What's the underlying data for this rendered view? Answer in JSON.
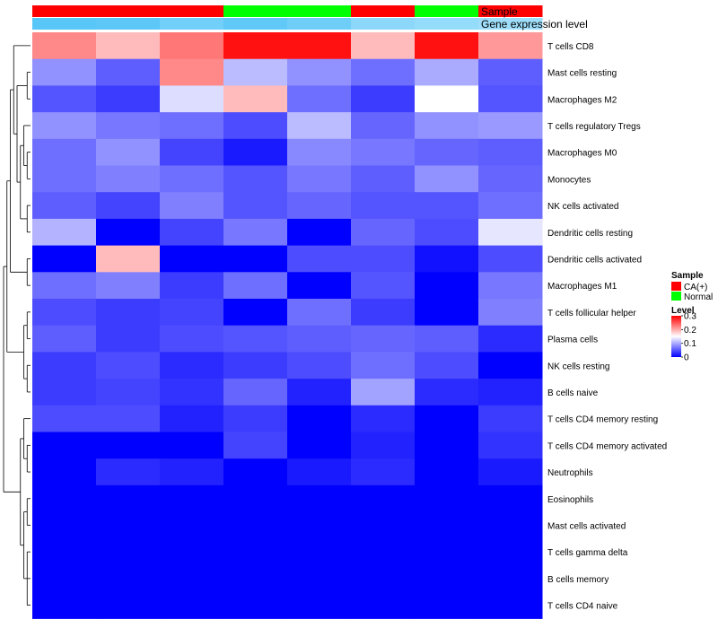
{
  "chart_data": {
    "type": "heatmap",
    "annotation_rows": [
      "Sample",
      "Gene expression level"
    ],
    "samples": [
      {
        "group": "CA(+)",
        "expression": 0.95
      },
      {
        "group": "CA(+)",
        "expression": 0.92
      },
      {
        "group": "CA(+)",
        "expression": 0.8
      },
      {
        "group": "Normal",
        "expression": 0.9
      },
      {
        "group": "Normal",
        "expression": 0.82
      },
      {
        "group": "CA(+)",
        "expression": 0.65
      },
      {
        "group": "Normal",
        "expression": 0.6
      },
      {
        "group": "CA(+)",
        "expression": 0.55
      }
    ],
    "rows": [
      "T cells CD8",
      "Mast cells resting",
      "Macrophages M2",
      "T cells regulatory  Tregs",
      "Macrophages M0",
      "Monocytes",
      "NK cells activated",
      "Dendritic cells resting",
      "Dendritic cells activated",
      "Macrophages M1",
      "T cells follicular helper",
      "Plasma cells",
      "NK cells resting",
      "B cells naive",
      "T cells CD4 memory resting",
      "T cells CD4 memory activated",
      "Neutrophils",
      "Eosinophils",
      "Mast cells activated",
      "T cells gamma delta",
      "B cells memory",
      "T cells CD4 naive"
    ],
    "values": [
      [
        0.22,
        0.19,
        0.23,
        0.29,
        0.29,
        0.19,
        0.29,
        0.21
      ],
      [
        0.085,
        0.055,
        0.22,
        0.11,
        0.085,
        0.065,
        0.1,
        0.055
      ],
      [
        0.05,
        0.035,
        0.13,
        0.19,
        0.065,
        0.035,
        0.15,
        0.05
      ],
      [
        0.085,
        0.07,
        0.065,
        0.045,
        0.11,
        0.06,
        0.085,
        0.09
      ],
      [
        0.065,
        0.085,
        0.04,
        0.015,
        0.08,
        0.07,
        0.06,
        0.055
      ],
      [
        0.065,
        0.075,
        0.065,
        0.05,
        0.07,
        0.055,
        0.085,
        0.06
      ],
      [
        0.055,
        0.04,
        0.075,
        0.05,
        0.06,
        0.05,
        0.05,
        0.065
      ],
      [
        0.105,
        0.0,
        0.04,
        0.07,
        0.0,
        0.06,
        0.045,
        0.135
      ],
      [
        0.0,
        0.19,
        0.0,
        0.0,
        0.045,
        0.045,
        0.01,
        0.045
      ],
      [
        0.065,
        0.075,
        0.035,
        0.065,
        0.0,
        0.05,
        0.0,
        0.07
      ],
      [
        0.045,
        0.035,
        0.04,
        0.0,
        0.065,
        0.035,
        0.0,
        0.075
      ],
      [
        0.055,
        0.035,
        0.045,
        0.05,
        0.055,
        0.06,
        0.055,
        0.025
      ],
      [
        0.035,
        0.045,
        0.025,
        0.035,
        0.045,
        0.065,
        0.045,
        0.0
      ],
      [
        0.035,
        0.04,
        0.03,
        0.06,
        0.02,
        0.095,
        0.025,
        0.02
      ],
      [
        0.045,
        0.045,
        0.02,
        0.035,
        0.0,
        0.025,
        0.0,
        0.035
      ],
      [
        0.0,
        0.0,
        0.0,
        0.04,
        0.0,
        0.02,
        0.0,
        0.03
      ],
      [
        0.0,
        0.025,
        0.02,
        0.0,
        0.015,
        0.025,
        0.0,
        0.015
      ],
      [
        0.0,
        0.0,
        0.0,
        0.0,
        0.0,
        0.0,
        0.0,
        0.0
      ],
      [
        0.0,
        0.0,
        0.0,
        0.0,
        0.0,
        0.0,
        0.0,
        0.0
      ],
      [
        0.0,
        0.0,
        0.0,
        0.0,
        0.0,
        0.0,
        0.0,
        0.0
      ],
      [
        0.0,
        0.0,
        0.0,
        0.0,
        0.0,
        0.0,
        0.0,
        0.0
      ],
      [
        0.0,
        0.0,
        0.0,
        0.0,
        0.0,
        0.0,
        0.0,
        0.0
      ]
    ],
    "color_scale": {
      "low": "#0000FF",
      "mid": "#FFFFFF",
      "high": "#FF0000",
      "min": 0,
      "mid_value": 0.15,
      "max": 0.3
    },
    "expression_scale": {
      "low": "#FFFFFF",
      "high": "#4FC3F7"
    },
    "legend": {
      "sample_title": "Sample",
      "sample_entries": [
        {
          "label": "CA(+)",
          "color": "#FF0000"
        },
        {
          "label": "Normal",
          "color": "#00FF00"
        }
      ],
      "level_title": "Level",
      "level_ticks": [
        "0.3",
        "0.2",
        "0.1",
        "0"
      ],
      "level_tick_values": [
        0.3,
        0.2,
        0.1,
        0
      ]
    },
    "dendrogram": {
      "tree": [
        [
          [
            [
              0,
              [
                [
                  1,
                  2
                ],
                [
                  [
                    3,
                    [
                      4,
                      5
                    ]
                  ],
                  [
                    6,
                    7
                  ]
                ]
              ]
            ],
            [
              8,
              9
            ]
          ],
          [
            [
              10,
              11
            ],
            [
              12,
              13
            ]
          ]
        ],
        [
          [
            14,
            [
              15,
              16
            ]
          ],
          [
            [
              17,
              18
            ],
            [
              19,
              20,
              21
            ]
          ]
        ]
      ]
    }
  }
}
